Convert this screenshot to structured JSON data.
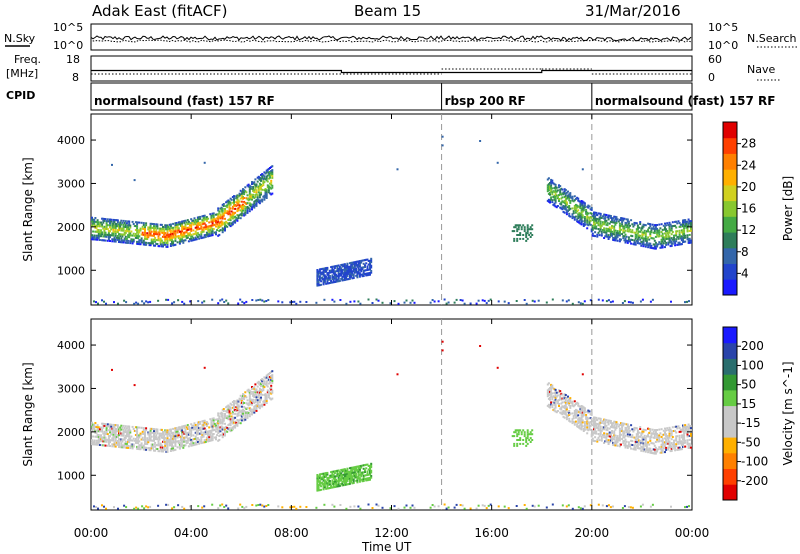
{
  "header": {
    "station": "Adak East (fitACF)",
    "beam": "Beam 15",
    "date": "31/Mar/2016"
  },
  "noise_panel": {
    "left_label": "N.Sky",
    "right_label": "N.Search",
    "left_ticks": [
      "10^5",
      "10^0"
    ],
    "right_ticks": [
      "10^5",
      "10^0"
    ]
  },
  "freq_panel": {
    "left_label": "Freq.",
    "left_unit": "[MHz]",
    "right_label": "Nave",
    "left_ticks": [
      "18",
      "8"
    ],
    "right_ticks": [
      "60",
      "0"
    ]
  },
  "cpid": {
    "label": "CPID",
    "segments": [
      {
        "name": "normalsound (fast) 157 RF",
        "start": 0,
        "end": 14
      },
      {
        "name": "rbsp 200 RF",
        "start": 14,
        "end": 20
      },
      {
        "name": "normalsound (fast) 157 RF",
        "start": 20,
        "end": 24
      }
    ]
  },
  "chart_data": [
    {
      "type": "heatmap",
      "name": "power",
      "ylabel": "Slant Range [km]",
      "yticks": [
        1000,
        2000,
        3000,
        4000
      ],
      "ylim": [
        200,
        4600
      ],
      "xlim": [
        0,
        24
      ],
      "colorbar": {
        "label": "Power [dB]",
        "ticks": [
          "28",
          "24",
          "20",
          "16",
          "12",
          "8",
          "4"
        ],
        "range": [
          0,
          30
        ],
        "colors": [
          "#1a1aff",
          "#2244cc",
          "#3366aa",
          "#2e7d5a",
          "#44aa44",
          "#88c830",
          "#d0d020",
          "#ffb000",
          "#ff8000",
          "#ff4000",
          "#e00000"
        ]
      },
      "mode": "power"
    },
    {
      "type": "heatmap",
      "name": "velocity",
      "ylabel": "Slant Range [km]",
      "yticks": [
        1000,
        2000,
        3000,
        4000
      ],
      "ylim": [
        200,
        4600
      ],
      "xlim": [
        0,
        24
      ],
      "colorbar": {
        "label": "Velocity [m s^-1]",
        "ticks": [
          "200",
          "100",
          "50",
          "15",
          "-15",
          "-50",
          "-100",
          "-200"
        ],
        "range": [
          -250,
          250
        ],
        "colors": [
          "#e00000",
          "#ff4000",
          "#ff8000",
          "#ffb000",
          "#c8c8c8",
          "#c8c8c8",
          "#66cc44",
          "#339933",
          "#2a6e6e",
          "#2a44aa",
          "#1a1aff"
        ]
      },
      "mode": "velocity"
    }
  ],
  "xaxis": {
    "label": "Time UT",
    "ticks": [
      "00:00",
      "04:00",
      "08:00",
      "12:00",
      "16:00",
      "20:00",
      "00:00"
    ]
  }
}
